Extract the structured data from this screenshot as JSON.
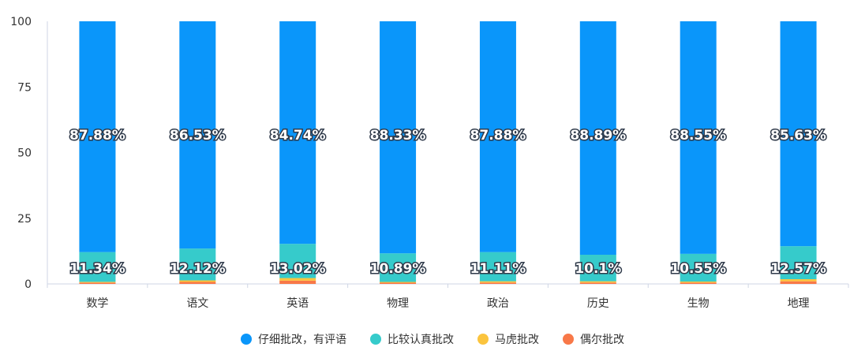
{
  "chart_data": {
    "type": "bar",
    "stacked": true,
    "categories": [
      "数学",
      "语文",
      "英语",
      "物理",
      "政治",
      "历史",
      "生物",
      "地理"
    ],
    "ylim": [
      0,
      100
    ],
    "yticks": [
      "0",
      "25",
      "50",
      "75",
      "100"
    ],
    "series": [
      {
        "name": "仔细批改，有评语",
        "color": "#0a96fa",
        "values": [
          87.88,
          86.53,
          84.74,
          88.33,
          87.88,
          88.89,
          88.55,
          85.63
        ],
        "labels": [
          "87.88%",
          "86.53%",
          "84.74%",
          "88.33%",
          "87.88%",
          "88.89%",
          "88.55%",
          "85.63%"
        ]
      },
      {
        "name": "比较认真批改",
        "color": "#36cbcb",
        "values": [
          11.34,
          12.12,
          13.02,
          10.89,
          11.11,
          10.1,
          10.55,
          12.57
        ],
        "labels": [
          "11.34%",
          "12.12%",
          "13.02%",
          "10.89%",
          "11.11%",
          "10.1%",
          "10.55%",
          "12.57%"
        ]
      },
      {
        "name": "马虎批改",
        "color": "#fbc43e",
        "values": [
          0.3,
          0.6,
          1.0,
          0.3,
          0.5,
          0.5,
          0.4,
          0.8
        ]
      },
      {
        "name": "偶尔批改",
        "color": "#f87848",
        "values": [
          0.48,
          0.75,
          1.24,
          0.45,
          0.51,
          0.51,
          0.5,
          1.0
        ]
      }
    ],
    "legend_position": "bottom",
    "grid": false
  }
}
